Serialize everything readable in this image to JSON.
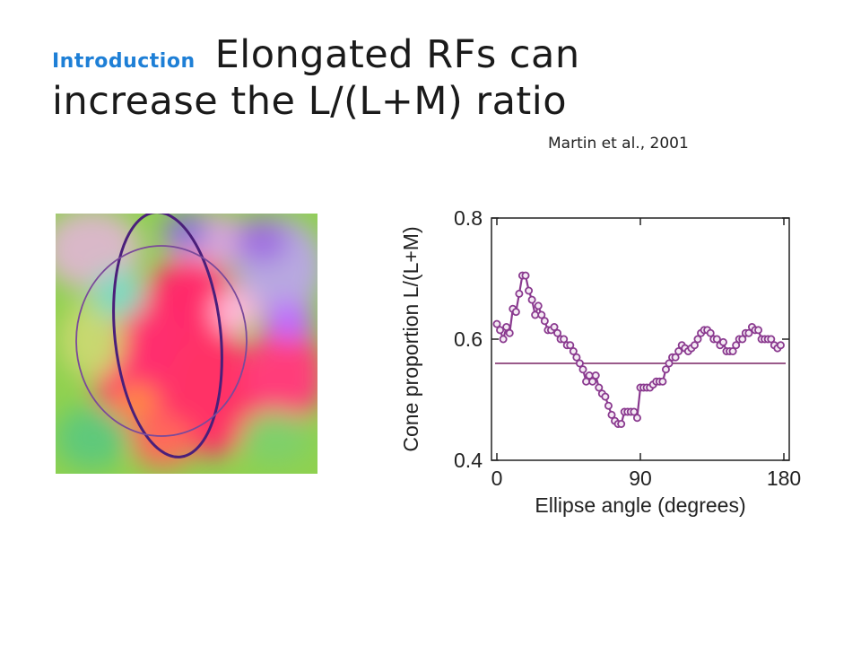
{
  "slide": {
    "section_label": "Introduction",
    "title_line1": "Elongated RFs can",
    "title_line2": "increase the L/(L+M) ratio",
    "citation": "Martin et al., 2001"
  },
  "colors": {
    "accent": "#1e7fd6",
    "data_series": "#8a3a8f",
    "reference_line": "#9a5a8a",
    "ellipse_dark": "#4a1f7a",
    "ellipse_light": "#7a4a9a"
  },
  "chart_data": {
    "type": "line",
    "xlabel": "Ellipse angle (degrees)",
    "ylabel": "Cone proportion L/(L+M)",
    "xlim": [
      0,
      180
    ],
    "ylim": [
      0.4,
      0.8
    ],
    "xticks": [
      0,
      90,
      180
    ],
    "yticks": [
      0.4,
      0.6,
      0.8
    ],
    "xtick_labels": [
      "0",
      "90",
      "180"
    ],
    "ytick_labels": [
      "0.4",
      "0.6",
      "0.8"
    ],
    "grid": false,
    "series": [
      {
        "x": [
          0,
          2,
          4,
          6,
          8,
          10,
          12,
          14,
          16,
          18,
          20,
          22,
          24,
          26,
          28,
          30,
          32,
          34,
          36,
          38,
          40,
          42,
          44,
          46,
          48,
          50,
          52,
          54,
          56,
          58,
          60,
          62,
          64,
          66,
          68,
          70,
          72,
          74,
          76,
          78,
          80,
          82,
          84,
          86,
          88,
          90,
          92,
          94,
          96,
          98,
          100,
          102,
          104,
          106,
          108,
          110,
          112,
          114,
          116,
          118,
          120,
          122,
          124,
          126,
          128,
          130,
          132,
          134,
          136,
          138,
          140,
          142,
          144,
          146,
          148,
          150,
          152,
          154,
          156,
          158,
          160,
          162,
          164,
          166,
          168,
          170,
          172,
          174,
          176,
          178
        ],
        "values": [
          0.625,
          0.615,
          0.6,
          0.62,
          0.61,
          0.65,
          0.645,
          0.675,
          0.705,
          0.705,
          0.68,
          0.665,
          0.64,
          0.655,
          0.64,
          0.63,
          0.615,
          0.615,
          0.62,
          0.61,
          0.6,
          0.6,
          0.59,
          0.59,
          0.58,
          0.57,
          0.56,
          0.55,
          0.53,
          0.54,
          0.53,
          0.54,
          0.52,
          0.51,
          0.505,
          0.49,
          0.475,
          0.465,
          0.46,
          0.46,
          0.48,
          0.48,
          0.48,
          0.48,
          0.47,
          0.52,
          0.52,
          0.52,
          0.52,
          0.525,
          0.53,
          0.53,
          0.53,
          0.55,
          0.56,
          0.57,
          0.57,
          0.58,
          0.59,
          0.585,
          0.58,
          0.585,
          0.59,
          0.6,
          0.61,
          0.615,
          0.615,
          0.61,
          0.6,
          0.6,
          0.59,
          0.595,
          0.58,
          0.58,
          0.58,
          0.59,
          0.6,
          0.6,
          0.61,
          0.61,
          0.62,
          0.615,
          0.615,
          0.6,
          0.6,
          0.6,
          0.6,
          0.59,
          0.585,
          0.59
        ]
      }
    ],
    "reference_line_y": 0.56
  }
}
